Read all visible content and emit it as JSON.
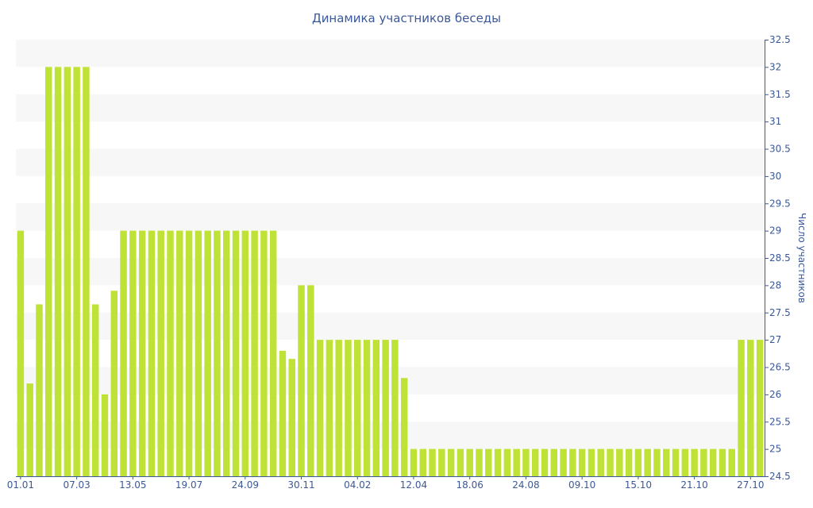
{
  "chart_data": {
    "type": "bar",
    "title": "Динамика участников беседы",
    "xlabel": "",
    "ylabel": "Число участников",
    "ylim": [
      24.5,
      32.5
    ],
    "y_ticks": [
      "24.5",
      "25",
      "25.5",
      "26",
      "26.5",
      "27",
      "27.5",
      "28",
      "28.5",
      "29",
      "29.5",
      "30",
      "30.5",
      "31",
      "31.5",
      "32",
      "32.5"
    ],
    "x_tick_labels": [
      "01.01",
      "07.03",
      "13.05",
      "19.07",
      "24.09",
      "30.11",
      "04.02",
      "12.04",
      "18.06",
      "24.08",
      "09.10",
      "15.10",
      "21.10",
      "27.10"
    ],
    "x_tick_indices": [
      0,
      6,
      12,
      18,
      24,
      30,
      36,
      42,
      48,
      54,
      60,
      66,
      72,
      78
    ],
    "values": [
      29,
      26.2,
      27.65,
      32,
      32,
      32,
      32,
      32,
      27.65,
      26,
      27.9,
      29,
      29,
      29,
      29,
      29,
      29,
      29,
      29,
      29,
      29,
      29,
      29,
      29,
      29,
      29,
      29,
      29,
      26.8,
      26.65,
      28,
      28,
      27,
      27,
      27,
      27,
      27,
      27,
      27,
      27,
      27,
      26.3,
      25,
      25,
      25,
      25,
      25,
      25,
      25,
      25,
      25,
      25,
      25,
      25,
      25,
      25,
      25,
      25,
      25,
      25,
      25,
      25,
      25,
      25,
      25,
      25,
      25,
      25,
      25,
      25,
      25,
      25,
      25,
      25,
      25,
      25,
      25,
      27,
      27,
      27
    ],
    "grid": "horizontal alternating bands",
    "colors": {
      "bar": "#bfe236",
      "band": "#f7f7f7",
      "text": "#3b5998",
      "axis": "#3b5998"
    }
  }
}
